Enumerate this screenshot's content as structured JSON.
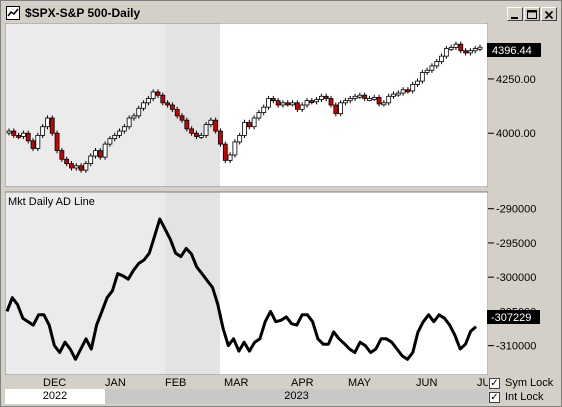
{
  "window": {
    "title": "$SPX-S&P 500-Daily",
    "buttons": [
      "_",
      "□",
      "×"
    ]
  },
  "price_panel": {
    "last_price": "4396.44",
    "y_ticks": [
      "4250.00",
      "4000.00"
    ]
  },
  "indicator_panel": {
    "label": "Mkt Daily AD Line",
    "last_value": "-307229",
    "y_ticks": [
      "-290000",
      "-295000",
      "-300000",
      "-305000",
      "-310000"
    ]
  },
  "x_axis": {
    "months": [
      "DEC",
      "JAN",
      "FEB",
      "MAR",
      "APR",
      "MAY",
      "JUN",
      "JU"
    ]
  },
  "year_bar": {
    "left_year": "2022",
    "right_year": "2023"
  },
  "options": {
    "sym_lock": {
      "label": "Sym Lock",
      "checked": true
    },
    "int_lock": {
      "label": "Int Lock",
      "checked": true
    }
  },
  "chart_data": [
    {
      "type": "candlestick",
      "title": "$SPX-S&P 500-Daily",
      "ylim": [
        3780,
        4480
      ],
      "last": 4396.44,
      "y_ticks": [
        4000,
        4250
      ],
      "x_ticks": [
        "DEC",
        "JAN",
        "FEB",
        "MAR",
        "APR",
        "MAY",
        "JUN"
      ],
      "close": [
        4010,
        3990,
        3985,
        4000,
        3965,
        3930,
        3990,
        4030,
        4070,
        4000,
        3920,
        3880,
        3860,
        3840,
        3850,
        3830,
        3860,
        3895,
        3920,
        3890,
        3950,
        3975,
        3990,
        4010,
        4030,
        4070,
        4080,
        4115,
        4140,
        4160,
        4190,
        4175,
        4140,
        4130,
        4110,
        4080,
        4060,
        4020,
        4000,
        3985,
        3990,
        4040,
        4060,
        4010,
        3950,
        3875,
        3900,
        3960,
        3990,
        4050,
        4030,
        4070,
        4095,
        4120,
        4160,
        4150,
        4130,
        4140,
        4135,
        4140,
        4110,
        4130,
        4150,
        4145,
        4155,
        4170,
        4160,
        4130,
        4090,
        4140,
        4150,
        4160,
        4170,
        4175,
        4160,
        4160,
        4165,
        4135,
        4140,
        4170,
        4180,
        4185,
        4200,
        4195,
        4225,
        4240,
        4280,
        4290,
        4310,
        4330,
        4355,
        4390,
        4395,
        4410,
        4380,
        4370,
        4380,
        4390,
        4396
      ]
    },
    {
      "type": "line",
      "title": "Mkt Daily AD Line",
      "ylim": [
        -314000,
        -288000
      ],
      "last": -307229,
      "y_ticks": [
        -290000,
        -295000,
        -300000,
        -305000,
        -310000
      ],
      "values": [
        -305000,
        -303000,
        -304000,
        -306000,
        -306500,
        -307000,
        -305500,
        -305500,
        -307000,
        -310000,
        -311000,
        -309500,
        -310500,
        -312000,
        -310500,
        -309000,
        -310500,
        -307000,
        -305000,
        -303000,
        -302000,
        -299500,
        -299800,
        -300300,
        -299000,
        -298000,
        -297500,
        -296500,
        -294000,
        -291500,
        -293000,
        -294500,
        -296500,
        -297000,
        -295800,
        -296600,
        -298500,
        -299500,
        -300500,
        -301500,
        -304000,
        -307500,
        -310000,
        -309000,
        -310800,
        -309500,
        -310800,
        -309500,
        -309000,
        -306500,
        -305000,
        -306500,
        -306300,
        -305800,
        -306800,
        -307000,
        -305500,
        -305500,
        -306500,
        -309000,
        -309800,
        -309800,
        -308000,
        -309000,
        -309700,
        -310500,
        -311000,
        -309500,
        -310000,
        -311000,
        -310500,
        -309000,
        -309000,
        -309500,
        -310500,
        -311500,
        -312000,
        -311000,
        -308000,
        -306500,
        -305500,
        -306500,
        -305500,
        -306000,
        -307000,
        -308500,
        -310500,
        -309800,
        -307900,
        -307229
      ]
    }
  ]
}
